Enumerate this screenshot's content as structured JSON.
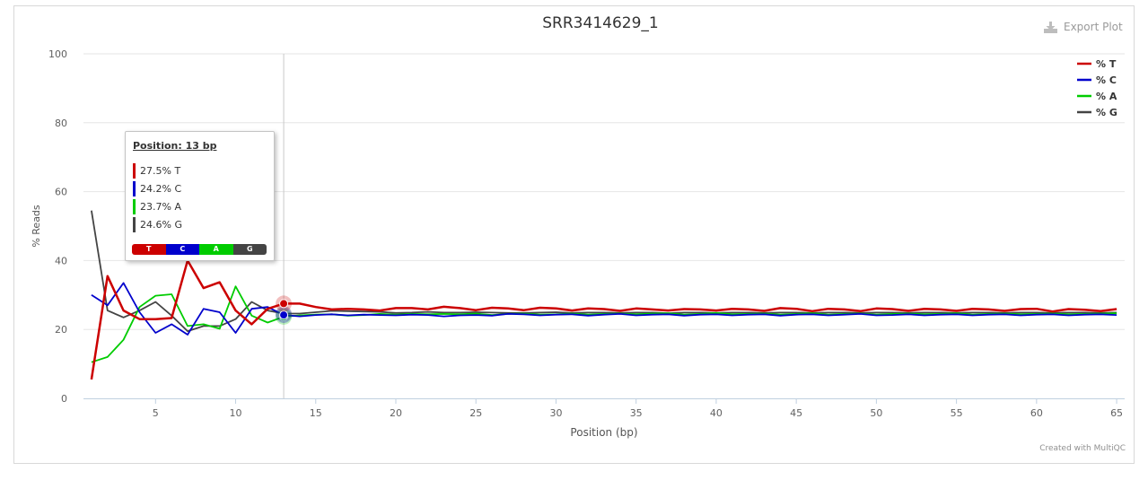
{
  "export_label": "Export Plot",
  "credit": "Created with MultiQC",
  "chart_data": {
    "type": "line",
    "title": "SRR3414629_1",
    "xlabel": "Position (bp)",
    "ylabel": "% Reads",
    "xlim": [
      0.5,
      65.5
    ],
    "ylim": [
      0,
      100
    ],
    "x_ticks": [
      5,
      10,
      15,
      20,
      25,
      30,
      35,
      40,
      45,
      50,
      55,
      60,
      65
    ],
    "y_ticks": [
      0,
      20,
      40,
      60,
      80,
      100
    ],
    "grid": true,
    "legend_position": "top-right",
    "x": [
      1,
      2,
      3,
      4,
      5,
      6,
      7,
      8,
      9,
      10,
      11,
      12,
      13,
      14,
      15,
      16,
      17,
      18,
      19,
      20,
      21,
      22,
      23,
      24,
      25,
      26,
      27,
      28,
      29,
      30,
      31,
      32,
      33,
      34,
      35,
      36,
      37,
      38,
      39,
      40,
      41,
      42,
      43,
      44,
      45,
      46,
      47,
      48,
      49,
      50,
      51,
      52,
      53,
      54,
      55,
      56,
      57,
      58,
      59,
      60,
      61,
      62,
      63,
      64,
      65
    ],
    "series": [
      {
        "name": "% T",
        "color": "#cc0000",
        "values": [
          5.5,
          35.5,
          25.5,
          23,
          23,
          23.3,
          40,
          32,
          33.7,
          25.5,
          21.5,
          26,
          27.5,
          27.5,
          26.5,
          25.8,
          26,
          25.8,
          25.5,
          26.2,
          26.2,
          25.8,
          26.6,
          26.2,
          25.6,
          26.3,
          26.1,
          25.6,
          26.3,
          26.1,
          25.5,
          26.1,
          25.9,
          25.4,
          26.1,
          25.8,
          25.5,
          25.9,
          25.8,
          25.5,
          26.0,
          25.8,
          25.4,
          26.2,
          26.0,
          25.3,
          26.0,
          25.8,
          25.3,
          26.1,
          25.9,
          25.4,
          26.0,
          25.8,
          25.4,
          26.0,
          25.8,
          25.4,
          25.9,
          26.0,
          25.2,
          25.9,
          25.7,
          25.3,
          25.9
        ]
      },
      {
        "name": "% C",
        "color": "#0000cc",
        "values": [
          30,
          27,
          33.5,
          25,
          19,
          21.5,
          18.5,
          26,
          25,
          19,
          26,
          26.5,
          24.2,
          23.8,
          24.2,
          24.4,
          24.1,
          24.3,
          24.2,
          24.1,
          24.3,
          24.2,
          23.8,
          24.1,
          24.2,
          24.0,
          24.5,
          24.4,
          24.1,
          24.3,
          24.4,
          24.0,
          24.3,
          24.5,
          24.1,
          24.3,
          24.4,
          24.0,
          24.3,
          24.4,
          24.1,
          24.3,
          24.4,
          24.0,
          24.3,
          24.4,
          24.1,
          24.3,
          24.5,
          24.1,
          24.2,
          24.4,
          24.1,
          24.3,
          24.4,
          24.1,
          24.3,
          24.4,
          24.1,
          24.3,
          24.4,
          24.1,
          24.3,
          24.4,
          24.2
        ]
      },
      {
        "name": "% A",
        "color": "#00cc00",
        "values": [
          10.5,
          12,
          17,
          26.5,
          29.8,
          30.2,
          21,
          21.5,
          20.2,
          32.5,
          24,
          22,
          23.7,
          24.1,
          24.3,
          24.4,
          24.0,
          24.2,
          24.5,
          24.3,
          24.5,
          24.4,
          24.5,
          24.4,
          24.6,
          24.2,
          24.5,
          24.6,
          24.3,
          24.4,
          24.6,
          24.3,
          24.5,
          24.6,
          24.4,
          24.6,
          24.7,
          24.3,
          24.5,
          24.8,
          24.4,
          24.5,
          24.6,
          24.3,
          24.5,
          24.7,
          24.3,
          24.5,
          24.6,
          24.3,
          24.5,
          24.6,
          24.4,
          24.5,
          24.7,
          24.3,
          24.5,
          24.6,
          24.4,
          24.5,
          24.6,
          24.4,
          24.5,
          24.6,
          24.7
        ]
      },
      {
        "name": "% G",
        "color": "#444444",
        "values": [
          54.5,
          25.5,
          23.5,
          25.5,
          28,
          24,
          19.5,
          21,
          21,
          23,
          28,
          25.5,
          24.6,
          24.6,
          25,
          25.4,
          25.3,
          25.2,
          25.1,
          24.8,
          24.9,
          25.1,
          24.9,
          24.9,
          25.0,
          24.9,
          24.8,
          24.8,
          24.9,
          25.0,
          24.8,
          24.9,
          24.9,
          24.8,
          24.9,
          24.9,
          24.7,
          24.9,
          24.9,
          24.8,
          24.9,
          24.9,
          24.8,
          24.9,
          24.9,
          24.8,
          24.9,
          24.9,
          24.8,
          24.9,
          24.9,
          24.8,
          24.9,
          24.9,
          24.8,
          24.9,
          24.9,
          24.8,
          24.9,
          24.9,
          24.8,
          24.9,
          24.9,
          24.8,
          24.9
        ]
      }
    ],
    "hover_position": 13,
    "tooltip": {
      "title": "Position: 13 bp",
      "rows": [
        "27.5% T",
        "24.2% C",
        "23.7% A",
        "24.6% G"
      ],
      "strip": [
        "T",
        "C",
        "A",
        "G"
      ]
    }
  }
}
